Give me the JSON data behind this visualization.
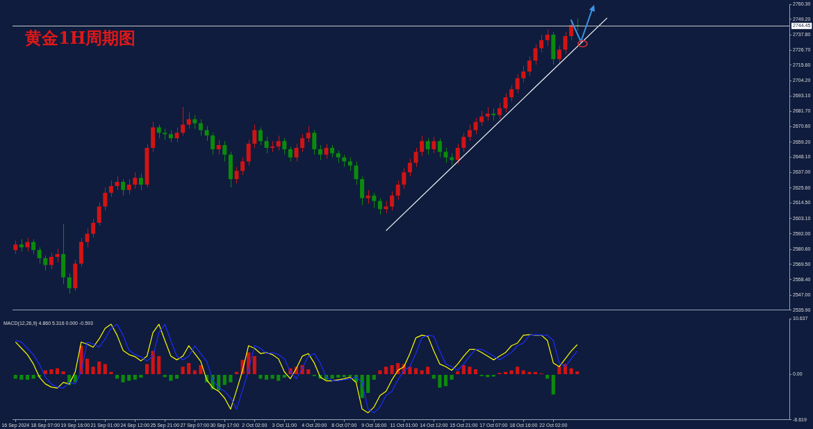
{
  "chart_data": [
    {
      "type": "candlestick",
      "title": "黄金1H周期图",
      "tick_labels": "y",
      "grid": false,
      "categories": [
        null,
        null,
        null,
        null,
        null,
        null,
        null,
        null,
        null,
        null,
        null,
        null,
        null,
        null,
        null,
        null,
        null,
        null,
        null,
        null,
        null,
        null,
        null,
        null,
        null,
        null,
        null,
        null,
        null,
        null,
        null,
        null,
        null,
        null,
        null,
        null,
        null,
        null,
        null,
        null,
        null,
        null,
        null,
        null,
        null,
        null,
        null,
        null,
        null,
        null,
        null,
        null,
        null,
        null,
        null,
        null,
        null,
        null,
        null,
        null,
        null,
        null,
        null,
        null,
        null,
        null,
        null,
        null,
        null,
        null,
        null,
        null,
        null,
        null,
        null,
        null,
        null,
        null,
        null,
        null,
        null,
        null,
        null,
        null,
        null,
        null,
        null,
        null,
        null,
        null,
        null,
        null,
        null,
        null,
        null,
        null,
        null,
        null,
        null,
        null,
        null,
        null,
        null,
        null,
        null,
        null,
        null,
        null,
        null,
        null,
        null,
        null,
        null,
        null,
        null,
        null,
        null,
        null,
        null,
        null,
        null,
        null,
        null,
        null,
        null,
        null,
        null,
        null,
        null,
        null
      ],
      "ohlc": [
        [
          2580,
          2587,
          2577,
          2584
        ],
        [
          2584,
          2588,
          2579,
          2582
        ],
        [
          2582,
          2589,
          2579,
          2586
        ],
        [
          2586,
          2588,
          2577,
          2580
        ],
        [
          2580,
          2582,
          2570,
          2574
        ],
        [
          2574,
          2576,
          2565,
          2569
        ],
        [
          2569,
          2578,
          2566,
          2575
        ],
        [
          2575,
          2581,
          2571,
          2577
        ],
        [
          2577,
          2599,
          2555,
          2560
        ],
        [
          2560,
          2563,
          2548,
          2552
        ],
        [
          2552,
          2573,
          2550,
          2570
        ],
        [
          2570,
          2589,
          2568,
          2586
        ],
        [
          2586,
          2596,
          2582,
          2592
        ],
        [
          2592,
          2603,
          2589,
          2600
        ],
        [
          2600,
          2615,
          2598,
          2612
        ],
        [
          2612,
          2626,
          2609,
          2622
        ],
        [
          2622,
          2631,
          2619,
          2627
        ],
        [
          2627,
          2634,
          2624,
          2630
        ],
        [
          2630,
          2632,
          2620,
          2624
        ],
        [
          2624,
          2632,
          2621,
          2628
        ],
        [
          2628,
          2637,
          2625,
          2633
        ],
        [
          2633,
          2636,
          2624,
          2628
        ],
        [
          2628,
          2658,
          2626,
          2655
        ],
        [
          2655,
          2674,
          2652,
          2670
        ],
        [
          2670,
          2672,
          2662,
          2666
        ],
        [
          2666,
          2669,
          2661,
          2665
        ],
        [
          2665,
          2668,
          2659,
          2662
        ],
        [
          2662,
          2670,
          2659,
          2666
        ],
        [
          2666,
          2685,
          2664,
          2672
        ],
        [
          2672,
          2681,
          2669,
          2676
        ],
        [
          2676,
          2679,
          2669,
          2673
        ],
        [
          2673,
          2676,
          2664,
          2668
        ],
        [
          2668,
          2671,
          2660,
          2664
        ],
        [
          2664,
          2666,
          2650,
          2654
        ],
        [
          2654,
          2661,
          2650,
          2657
        ],
        [
          2657,
          2660,
          2645,
          2650
        ],
        [
          2650,
          2652,
          2626,
          2632
        ],
        [
          2632,
          2641,
          2629,
          2638
        ],
        [
          2638,
          2648,
          2635,
          2645
        ],
        [
          2645,
          2661,
          2642,
          2658
        ],
        [
          2658,
          2672,
          2655,
          2668
        ],
        [
          2668,
          2670,
          2657,
          2660
        ],
        [
          2660,
          2663,
          2651,
          2655
        ],
        [
          2655,
          2660,
          2652,
          2656
        ],
        [
          2656,
          2664,
          2653,
          2660
        ],
        [
          2660,
          2662,
          2650,
          2654
        ],
        [
          2654,
          2656,
          2645,
          2648
        ],
        [
          2648,
          2658,
          2645,
          2655
        ],
        [
          2655,
          2665,
          2652,
          2662
        ],
        [
          2662,
          2671,
          2659,
          2666
        ],
        [
          2666,
          2668,
          2650,
          2654
        ],
        [
          2654,
          2657,
          2646,
          2650
        ],
        [
          2650,
          2658,
          2647,
          2655
        ],
        [
          2655,
          2657,
          2648,
          2651
        ],
        [
          2651,
          2653,
          2644,
          2648
        ],
        [
          2648,
          2650,
          2641,
          2645
        ],
        [
          2645,
          2648,
          2638,
          2642
        ],
        [
          2642,
          2645,
          2628,
          2632
        ],
        [
          2632,
          2634,
          2613,
          2618
        ],
        [
          2618,
          2624,
          2614,
          2620
        ],
        [
          2620,
          2622,
          2611,
          2616
        ],
        [
          2616,
          2618,
          2606,
          2610
        ],
        [
          2610,
          2616,
          2607,
          2612
        ],
        [
          2612,
          2623,
          2609,
          2620
        ],
        [
          2620,
          2631,
          2617,
          2628
        ],
        [
          2628,
          2640,
          2625,
          2637
        ],
        [
          2637,
          2647,
          2634,
          2644
        ],
        [
          2644,
          2655,
          2641,
          2652
        ],
        [
          2652,
          2664,
          2649,
          2660
        ],
        [
          2660,
          2662,
          2650,
          2654
        ],
        [
          2654,
          2663,
          2651,
          2660
        ],
        [
          2660,
          2662,
          2648,
          2652
        ],
        [
          2652,
          2655,
          2644,
          2648
        ],
        [
          2648,
          2651,
          2642,
          2646
        ],
        [
          2646,
          2658,
          2643,
          2655
        ],
        [
          2655,
          2666,
          2652,
          2663
        ],
        [
          2663,
          2672,
          2660,
          2668
        ],
        [
          2668,
          2677,
          2665,
          2674
        ],
        [
          2674,
          2682,
          2671,
          2678
        ],
        [
          2678,
          2685,
          2675,
          2680
        ],
        [
          2680,
          2684,
          2675,
          2679
        ],
        [
          2679,
          2688,
          2676,
          2684
        ],
        [
          2684,
          2695,
          2681,
          2692
        ],
        [
          2692,
          2701,
          2689,
          2698
        ],
        [
          2698,
          2709,
          2695,
          2706
        ],
        [
          2706,
          2715,
          2703,
          2711
        ],
        [
          2711,
          2722,
          2708,
          2719
        ],
        [
          2719,
          2731,
          2716,
          2728
        ],
        [
          2728,
          2738,
          2725,
          2734
        ],
        [
          2734,
          2742,
          2730,
          2738
        ],
        [
          2738,
          2740,
          2716,
          2720
        ],
        [
          2720,
          2730,
          2717,
          2727
        ],
        [
          2727,
          2740,
          2724,
          2737
        ],
        [
          2737,
          2748,
          2734,
          2745
        ],
        [
          2745,
          2750,
          2741,
          2744.45
        ],
        null,
        null,
        null,
        null,
        null,
        null,
        null,
        null,
        null,
        null,
        null,
        null,
        null,
        null,
        null,
        null,
        null,
        null,
        null,
        null,
        null,
        null,
        null,
        null,
        null,
        null,
        null,
        null,
        null,
        null,
        null,
        null,
        null,
        null,
        null
      ],
      "colors": [
        "#d01414",
        "#0c8a0c",
        "#d01414",
        "#0c8a0c",
        "#0c8a0c",
        "#0c8a0c",
        "#d01414",
        "#d01414",
        "#0c8a0c",
        "#0c8a0c",
        "#d01414",
        "#d01414",
        "#d01414",
        "#d01414",
        "#d01414",
        "#d01414",
        "#d01414",
        "#d01414",
        "#0c8a0c",
        "#d01414",
        "#d01414",
        "#0c8a0c",
        "#d01414",
        "#d01414",
        "#0c8a0c",
        "#0c8a0c",
        "#0c8a0c",
        "#d01414",
        "#d01414",
        "#d01414",
        "#0c8a0c",
        "#0c8a0c",
        "#0c8a0c",
        "#0c8a0c",
        "#d01414",
        "#0c8a0c",
        "#0c8a0c",
        "#d01414",
        "#d01414",
        "#d01414",
        "#d01414",
        "#0c8a0c",
        "#0c8a0c",
        "#d01414",
        "#d01414",
        "#0c8a0c",
        "#0c8a0c",
        "#d01414",
        "#d01414",
        "#d01414",
        "#0c8a0c",
        "#0c8a0c",
        "#d01414",
        "#0c8a0c",
        "#0c8a0c",
        "#0c8a0c",
        "#0c8a0c",
        "#0c8a0c",
        "#0c8a0c",
        "#d01414",
        "#0c8a0c",
        "#0c8a0c",
        "#d01414",
        "#d01414",
        "#d01414",
        "#d01414",
        "#d01414",
        "#d01414",
        "#d01414",
        "#0c8a0c",
        "#d01414",
        "#0c8a0c",
        "#0c8a0c",
        "#0c8a0c",
        "#d01414",
        "#d01414",
        "#d01414",
        "#d01414",
        "#d01414",
        "#d01414",
        "#0c8a0c",
        "#d01414",
        "#d01414",
        "#d01414",
        "#d01414",
        "#d01414",
        "#d01414",
        "#d01414",
        "#d01414",
        "#d01414",
        "#0c8a0c",
        "#d01414",
        "#d01414",
        "#d01414",
        "#0c8a0c",
        null,
        null,
        null,
        null,
        null,
        null,
        null,
        null,
        null,
        null,
        null,
        null,
        null,
        null,
        null,
        null,
        null,
        null,
        null,
        null,
        null,
        null,
        null,
        null,
        null,
        null,
        null,
        null,
        null,
        null,
        null,
        null,
        null,
        null,
        null
      ],
      "series": [
        {
          "type": "line",
          "color": "#ffffff",
          "values": [
            null,
            null,
            null,
            null,
            null,
            null,
            null,
            null,
            null,
            null,
            null,
            null,
            null,
            null,
            null,
            null,
            null,
            null,
            null,
            null,
            null,
            null,
            null,
            null,
            null,
            null,
            null,
            null,
            null,
            null,
            null,
            null,
            null,
            null,
            null,
            null,
            null,
            null,
            null,
            null,
            null,
            null,
            null,
            null,
            null,
            null,
            null,
            null,
            null,
            null,
            null,
            null,
            null,
            null,
            null,
            null,
            null,
            null,
            null,
            null,
            null,
            null,
            2594.2,
            null,
            null,
            null,
            null,
            null,
            null,
            null,
            null,
            null,
            null,
            null,
            null,
            null,
            null,
            null,
            null,
            null,
            null,
            null,
            null,
            null,
            null,
            null,
            null,
            null,
            null,
            null,
            null,
            null,
            null,
            null,
            null,
            null,
            null,
            null,
            null,
            2750.3,
            null,
            null,
            null,
            null,
            null,
            null,
            null,
            null,
            null,
            null,
            null,
            null,
            null,
            null,
            null,
            null,
            null,
            null,
            null,
            null,
            null,
            null,
            null,
            null,
            null,
            null,
            null,
            null,
            null,
            null
          ]
        }
      ],
      "ylim": [
        2535.9,
        2760.3
      ],
      "yticks": [
        {
          "value": 2535.9,
          "label": "2535.90"
        },
        {
          "value": 2547,
          "label": "2547.00"
        },
        {
          "value": 2558.4,
          "label": "2558.40"
        },
        {
          "value": 2569.5,
          "label": "2569.50"
        },
        {
          "value": 2580.6,
          "label": "2580.60"
        },
        {
          "value": 2592,
          "label": "2592.00"
        },
        {
          "value": 2603.1,
          "label": "2603.10"
        },
        {
          "value": 2614.5,
          "label": "2614.50"
        },
        {
          "value": 2625.6,
          "label": "2625.60"
        },
        {
          "value": 2637,
          "label": "2637.00"
        },
        {
          "value": 2648.1,
          "label": "2648.10"
        },
        {
          "value": 2659.2,
          "label": "2659.20"
        },
        {
          "value": 2670.6,
          "label": "2670.60"
        },
        {
          "value": 2681.7,
          "label": "2681.70"
        },
        {
          "value": 2693.1,
          "label": "2693.10"
        },
        {
          "value": 2704.2,
          "label": "2704.20"
        },
        {
          "value": 2715.6,
          "label": "2715.60"
        },
        {
          "value": 2726.7,
          "label": "2726.70"
        },
        {
          "value": 2737.8,
          "label": "2737.80"
        },
        {
          "value": 2749.2,
          "label": "2749.20"
        },
        {
          "value": 2760.3,
          "label": "2760.30"
        }
      ],
      "ref_lines": [
        {
          "axis": "y",
          "value": 2744.45,
          "label": "2744.45",
          "color": "#c8c8c8"
        }
      ]
    },
    {
      "type": "bar",
      "title": "MACD(12,26,9) 4.860 5.316 0.000 -0.593",
      "grid": false,
      "categories": [
        "16 Sep 2024",
        null,
        null,
        null,
        null,
        "18 Sep 07:00",
        null,
        null,
        null,
        null,
        "19 Sep 16:00",
        null,
        null,
        null,
        null,
        "21 Sep 01:00",
        null,
        null,
        null,
        null,
        "24 Sep 12:00",
        null,
        null,
        null,
        null,
        "25 Sep 21:00",
        null,
        null,
        null,
        null,
        "27 Sep 07:00",
        null,
        null,
        null,
        null,
        "30 Sep 17:00",
        null,
        null,
        null,
        null,
        "2 Oct 02:00",
        null,
        null,
        null,
        null,
        "3 Oct 11:00",
        null,
        null,
        null,
        null,
        "4 Oct 20:00",
        null,
        null,
        null,
        null,
        "8 Oct 07:00",
        null,
        null,
        null,
        null,
        "9 Oct 16:00",
        null,
        null,
        null,
        null,
        "11 Oct 01:00",
        null,
        null,
        null,
        null,
        "14 Oct 12:00",
        null,
        null,
        null,
        null,
        "15 Oct 21:00",
        null,
        null,
        null,
        null,
        "17 Oct 07:00",
        null,
        null,
        null,
        null,
        "18 Oct 16:00",
        null,
        null,
        null,
        null,
        "22 Oct 02:00",
        null,
        null,
        null,
        null,
        null,
        null,
        null,
        null,
        null,
        null,
        null,
        null,
        null,
        null,
        null,
        null,
        null,
        null,
        null,
        null,
        null,
        null,
        null,
        null,
        null,
        null,
        null,
        null,
        null,
        null,
        null,
        null,
        null,
        null,
        null,
        null,
        null,
        null,
        null
      ],
      "series": [
        {
          "type": "bar",
          "values": [
            -0.8,
            -1.0,
            -1.0,
            -0.8,
            -0.5,
            0.8,
            1.0,
            1.2,
            0.6,
            -2.0,
            -1.5,
            5.5,
            3.0,
            1.5,
            2.5,
            2.0,
            0.5,
            -0.8,
            -1.5,
            -1.2,
            -1.0,
            -0.6,
            2.0,
            4.5,
            3.5,
            -0.5,
            -1.2,
            -0.8,
            1.5,
            2.2,
            0.8,
            1.8,
            -1.5,
            -2.8,
            -3.0,
            -2.0,
            -1.5,
            0.5,
            2.8,
            4.2,
            3.5,
            -0.8,
            -1.0,
            -0.8,
            -1.2,
            -0.6,
            1.2,
            1.5,
            1.8,
            1.0,
            -0.3,
            -0.8,
            -1.0,
            -0.8,
            -0.6,
            -0.5,
            -0.4,
            -1.5,
            -4.5,
            -3.5,
            -1.0,
            0.8,
            1.5,
            1.8,
            2.2,
            2.0,
            1.5,
            1.2,
            0.8,
            1.5,
            -0.8,
            -2.5,
            -2.2,
            -1.0,
            0.6,
            1.8,
            1.5,
            1.0,
            -0.3,
            -0.5,
            -0.4,
            0.3,
            0.5,
            0.8,
            1.5,
            0.8,
            0.5,
            0.5,
            0.2,
            -0.8,
            -3.8,
            1.5,
            2.0,
            1.2,
            0.6,
            null,
            null,
            null,
            null,
            null,
            null,
            null,
            null,
            null,
            null,
            null,
            null,
            null,
            null,
            null,
            null,
            null,
            null,
            null,
            null,
            null,
            null,
            null,
            null,
            null,
            null,
            null,
            null,
            null,
            null,
            null,
            null,
            null,
            null,
            null
          ],
          "colors": [
            "#0c8a0c",
            "#0c8a0c",
            "#0c8a0c",
            "#0c8a0c",
            "#0c8a0c",
            "#d01414",
            "#d01414",
            "#d01414",
            "#d01414",
            "#0c8a0c",
            "#0c8a0c",
            "#d01414",
            "#d01414",
            "#d01414",
            "#d01414",
            "#d01414",
            "#d01414",
            "#0c8a0c",
            "#0c8a0c",
            "#0c8a0c",
            "#0c8a0c",
            "#0c8a0c",
            "#d01414",
            "#d01414",
            "#d01414",
            "#0c8a0c",
            "#0c8a0c",
            "#0c8a0c",
            "#d01414",
            "#d01414",
            "#d01414",
            "#d01414",
            "#0c8a0c",
            "#0c8a0c",
            "#0c8a0c",
            "#0c8a0c",
            "#0c8a0c",
            "#d01414",
            "#d01414",
            "#d01414",
            "#d01414",
            "#0c8a0c",
            "#0c8a0c",
            "#0c8a0c",
            "#0c8a0c",
            "#0c8a0c",
            "#d01414",
            "#d01414",
            "#d01414",
            "#d01414",
            "#0c8a0c",
            "#0c8a0c",
            "#0c8a0c",
            "#0c8a0c",
            "#0c8a0c",
            "#0c8a0c",
            "#0c8a0c",
            "#0c8a0c",
            "#0c8a0c",
            "#0c8a0c",
            "#0c8a0c",
            "#d01414",
            "#d01414",
            "#d01414",
            "#d01414",
            "#d01414",
            "#d01414",
            "#d01414",
            "#d01414",
            "#d01414",
            "#0c8a0c",
            "#0c8a0c",
            "#0c8a0c",
            "#0c8a0c",
            "#d01414",
            "#d01414",
            "#d01414",
            "#d01414",
            "#0c8a0c",
            "#0c8a0c",
            "#0c8a0c",
            "#d01414",
            "#d01414",
            "#d01414",
            "#d01414",
            "#d01414",
            "#d01414",
            "#d01414",
            "#d01414",
            "#0c8a0c",
            "#0c8a0c",
            "#d01414",
            "#d01414",
            "#d01414",
            "#d01414",
            null,
            null,
            null,
            null,
            null,
            null,
            null,
            null,
            null,
            null,
            null,
            null,
            null,
            null,
            null,
            null,
            null,
            null,
            null,
            null,
            null,
            null,
            null,
            null,
            null,
            null,
            null,
            null,
            null,
            null,
            null,
            null,
            null,
            null,
            null
          ]
        },
        {
          "type": "line",
          "color": "#1e2cff",
          "values": [
            6.5,
            6.2,
            5.0,
            3.8,
            2.0,
            -0.5,
            -1.8,
            -2.4,
            -2.6,
            -1.5,
            -1.8,
            0.5,
            6.2,
            5.8,
            5.2,
            6.8,
            8.8,
            9.6,
            7.5,
            4.6,
            3.8,
            3.4,
            2.6,
            3.5,
            8.0,
            9.6,
            6.5,
            3.5,
            2.8,
            3.5,
            5.5,
            4.0,
            2.5,
            -1.0,
            -2.5,
            -3.2,
            -4.5,
            -6.6,
            -3.0,
            0.8,
            5.5,
            5.0,
            4.0,
            4.2,
            3.8,
            3.0,
            0.5,
            -0.8,
            1.2,
            3.5,
            4.0,
            2.2,
            -0.5,
            -1.2,
            -1.2,
            -1.0,
            -0.8,
            -0.5,
            -1.5,
            -6.6,
            -7.3,
            -6.2,
            -4.0,
            -3.2,
            -1.0,
            0.8,
            1.5,
            4.0,
            7.0,
            7.5,
            7.3,
            4.5,
            2.0,
            1.5,
            0.8,
            2.0,
            3.5,
            4.8,
            4.8,
            4.2,
            3.5,
            2.8,
            3.5,
            4.2,
            5.5,
            6.0,
            7.5,
            7.6,
            7.5,
            7.5,
            6.5,
            2.2,
            1.5,
            3.0,
            4.5,
            null,
            null,
            null,
            null,
            null,
            null,
            null,
            null,
            null,
            null,
            null,
            null,
            null,
            null,
            null,
            null,
            null,
            null,
            null,
            null,
            null,
            null,
            null,
            null,
            null,
            null,
            null,
            null,
            null,
            null,
            null,
            null,
            null,
            null,
            null
          ]
        },
        {
          "type": "line",
          "color": "#ffff00",
          "values": [
            6.2,
            5.0,
            3.8,
            2.0,
            -0.5,
            -1.8,
            -2.4,
            -2.6,
            -1.5,
            -1.8,
            0.5,
            6.2,
            5.8,
            5.2,
            6.8,
            8.8,
            9.6,
            7.5,
            4.6,
            3.8,
            3.4,
            2.6,
            3.5,
            8.0,
            9.6,
            6.5,
            3.5,
            2.8,
            3.5,
            5.5,
            4.0,
            2.5,
            -1.0,
            -2.5,
            -3.2,
            -4.5,
            -6.6,
            -3.0,
            0.8,
            5.5,
            5.0,
            4.0,
            4.2,
            3.8,
            3.0,
            0.5,
            -0.8,
            1.2,
            3.5,
            4.0,
            2.2,
            -0.5,
            -1.2,
            -1.2,
            -1.0,
            -0.8,
            -0.5,
            -1.5,
            -6.6,
            -7.3,
            -6.2,
            -4.0,
            -3.2,
            -1.0,
            0.8,
            1.5,
            4.0,
            7.0,
            7.5,
            7.3,
            4.5,
            2.0,
            1.5,
            0.8,
            2.0,
            3.5,
            4.8,
            4.8,
            4.2,
            3.5,
            2.8,
            3.5,
            4.2,
            5.5,
            6.0,
            7.5,
            7.6,
            7.5,
            7.5,
            6.5,
            2.2,
            1.5,
            3.0,
            4.5,
            5.7,
            null,
            null,
            null,
            null,
            null,
            null,
            null,
            null,
            null,
            null,
            null,
            null,
            null,
            null,
            null,
            null,
            null,
            null,
            null,
            null,
            null,
            null,
            null,
            null,
            null,
            null,
            null,
            null,
            null,
            null,
            null,
            null,
            null,
            null,
            null
          ]
        }
      ],
      "ylim": [
        -8.619,
        10.637
      ],
      "yticks": [
        -8.619,
        {
          "value": 0,
          "label": "0.00"
        },
        10.637
      ]
    }
  ]
}
